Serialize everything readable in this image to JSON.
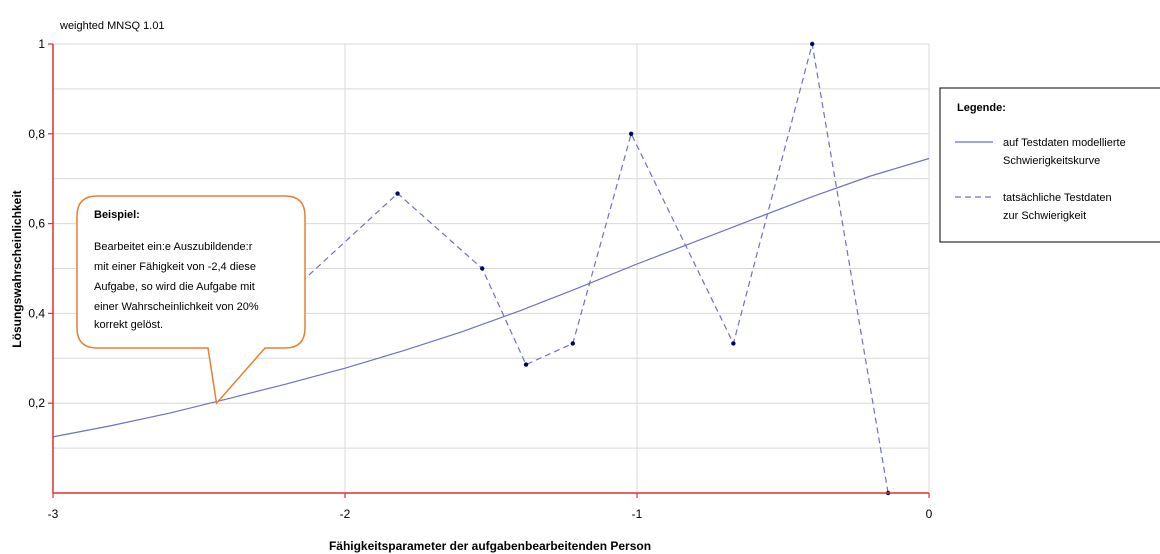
{
  "chart_data": {
    "type": "line",
    "top_note": "weighted MNSQ  1.01",
    "xlabel": "Fähigkeitsparameter der aufgabenbearbeitenden Person",
    "ylabel": "Lösungswahrscheinlichkeit",
    "xlim": [
      -3,
      0
    ],
    "ylim": [
      0,
      1
    ],
    "x_ticks": [
      {
        "value": -3,
        "label": "-3"
      },
      {
        "value": -2,
        "label": "-2"
      },
      {
        "value": -1,
        "label": "-1"
      },
      {
        "value": 0,
        "label": "0"
      }
    ],
    "y_ticks": [
      {
        "value": 0.2,
        "label": "0,2"
      },
      {
        "value": 0.4,
        "label": "0,4"
      },
      {
        "value": 0.6,
        "label": "0,6"
      },
      {
        "value": 0.8,
        "label": "0,8"
      },
      {
        "value": 1,
        "label": "1"
      }
    ],
    "grid": true,
    "series": [
      {
        "name": "auf Testdaten modellierte Schwierigkeitskurve",
        "style": "solid",
        "color": "#7070c8",
        "x": [
          -3.0,
          -2.8,
          -2.6,
          -2.4,
          -2.2,
          -2.0,
          -1.8,
          -1.6,
          -1.4,
          -1.2,
          -1.0,
          -0.8,
          -0.6,
          -0.4,
          -0.2,
          0.0
        ],
        "y": [
          0.125,
          0.15,
          0.178,
          0.21,
          0.243,
          0.278,
          0.317,
          0.359,
          0.406,
          0.457,
          0.51,
          0.56,
          0.61,
          0.66,
          0.706,
          0.745
        ]
      },
      {
        "name": "tatsächliche Testdaten zur Schwierigkeit",
        "style": "dashed",
        "color": "#7070c8",
        "marker_color": "#00006e",
        "x": [
          -2.3,
          -1.82,
          -1.53,
          -1.38,
          -1.22,
          -1.02,
          -0.67,
          -0.4,
          -0.14
        ],
        "y": [
          0.38,
          0.667,
          0.5,
          0.286,
          0.333,
          0.8,
          0.333,
          1.0,
          0.0
        ],
        "markers": [
          false,
          true,
          true,
          true,
          true,
          true,
          true,
          true,
          true
        ]
      }
    ],
    "legend": {
      "title": "Legende:",
      "position": "right",
      "items": [
        {
          "lines": [
            "auf Testdaten modellierte",
            "Schwierigkeitskurve"
          ]
        },
        {
          "lines": [
            "tatsächliche Testdaten",
            "zur Schwierigkeit"
          ]
        }
      ]
    },
    "callout": {
      "title": "Beispiel:",
      "lines": [
        "Bearbeitet ein:e Auszubildende:r",
        "mit einer Fähigkeit von -2,4 diese",
        "Aufgabe, so wird die Aufgabe mit",
        "einer Wahrscheinlichkeit von 20%",
        "korrekt gelöst."
      ],
      "point": {
        "x": -2.44,
        "y": 0.2
      },
      "border_color": "#ed7d31"
    },
    "colors": {
      "axis": "#e03030",
      "grid": "#d9d9d9"
    }
  }
}
